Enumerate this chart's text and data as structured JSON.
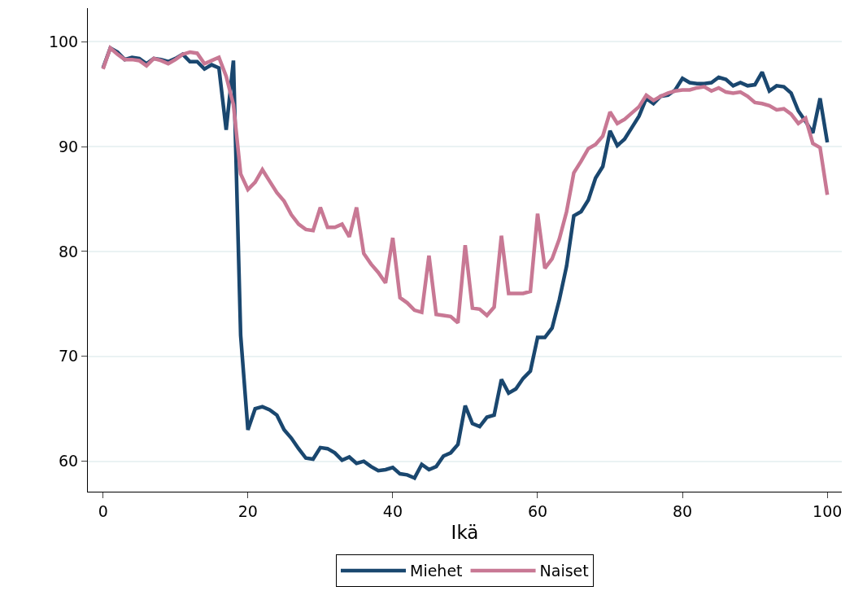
{
  "chart_data": {
    "type": "line",
    "xlabel": "Ikä",
    "x": [
      0,
      1,
      2,
      3,
      4,
      5,
      6,
      7,
      8,
      9,
      10,
      11,
      12,
      13,
      14,
      15,
      16,
      17,
      18,
      19,
      20,
      21,
      22,
      23,
      24,
      25,
      26,
      27,
      28,
      29,
      30,
      31,
      32,
      33,
      34,
      35,
      36,
      37,
      38,
      39,
      40,
      41,
      42,
      43,
      44,
      45,
      46,
      47,
      48,
      49,
      50,
      51,
      52,
      53,
      54,
      55,
      56,
      57,
      58,
      59,
      60,
      61,
      62,
      63,
      64,
      65,
      66,
      67,
      68,
      69,
      70,
      71,
      72,
      73,
      74,
      75,
      76,
      77,
      78,
      79,
      80,
      81,
      82,
      83,
      84,
      85,
      86,
      87,
      88,
      89,
      90,
      91,
      92,
      93,
      94,
      95,
      96,
      97,
      98,
      99,
      100
    ],
    "series": [
      {
        "name": "Miehet",
        "color": "#1a476f",
        "values": [
          97.5,
          99.4,
          99.0,
          98.3,
          98.5,
          98.4,
          97.9,
          98.4,
          98.3,
          98.1,
          98.4,
          98.8,
          98.1,
          98.1,
          97.4,
          97.8,
          97.5,
          91.6,
          98.2,
          72.0,
          63.0,
          65.0,
          65.2,
          64.9,
          64.4,
          63.0,
          62.2,
          61.2,
          60.3,
          60.2,
          61.3,
          61.2,
          60.8,
          60.1,
          60.4,
          59.8,
          60.0,
          59.5,
          59.1,
          59.2,
          59.4,
          58.8,
          58.7,
          58.4,
          59.7,
          59.2,
          59.5,
          60.5,
          60.8,
          61.6,
          65.3,
          63.6,
          63.3,
          64.2,
          64.4,
          67.8,
          66.5,
          66.9,
          67.9,
          68.6,
          71.8,
          71.8,
          72.7,
          75.4,
          78.6,
          83.4,
          83.8,
          84.9,
          87.0,
          88.1,
          91.5,
          90.1,
          90.7,
          91.8,
          92.9,
          94.6,
          94.1,
          94.8,
          94.9,
          95.4,
          96.5,
          96.1,
          96.0,
          96.0,
          96.1,
          96.6,
          96.4,
          95.8,
          96.1,
          95.8,
          95.9,
          97.1,
          95.3,
          95.8,
          95.7,
          95.1,
          93.4,
          92.4,
          91.3,
          94.6,
          90.4
        ]
      },
      {
        "name": "Naiset",
        "color": "#c87894",
        "values": [
          97.4,
          99.4,
          98.8,
          98.3,
          98.3,
          98.2,
          97.7,
          98.4,
          98.2,
          97.9,
          98.3,
          98.8,
          99.0,
          98.9,
          97.9,
          98.2,
          98.5,
          96.7,
          94.0,
          87.4,
          85.9,
          86.6,
          87.8,
          86.7,
          85.6,
          84.8,
          83.5,
          82.6,
          82.1,
          82.0,
          84.2,
          82.3,
          82.3,
          82.6,
          81.4,
          84.2,
          79.8,
          78.8,
          78.0,
          77.0,
          81.3,
          75.6,
          75.1,
          74.4,
          74.2,
          79.6,
          74.0,
          73.9,
          73.8,
          73.2,
          80.6,
          74.6,
          74.5,
          73.9,
          74.7,
          81.5,
          76.0,
          76.0,
          76.0,
          76.2,
          83.6,
          78.4,
          79.3,
          81.2,
          83.8,
          87.5,
          88.6,
          89.8,
          90.2,
          91.0,
          93.3,
          92.2,
          92.6,
          93.2,
          93.8,
          94.9,
          94.4,
          94.8,
          95.1,
          95.3,
          95.4,
          95.4,
          95.6,
          95.7,
          95.3,
          95.6,
          95.2,
          95.1,
          95.2,
          94.8,
          94.2,
          94.1,
          93.9,
          93.5,
          93.6,
          93.1,
          92.2,
          92.7,
          90.3,
          89.9,
          85.4
        ]
      }
    ],
    "xlim": [
      -2.1,
      102
    ],
    "ylim": [
      57.1,
      103.2
    ],
    "xticks": [
      0,
      20,
      40,
      60,
      80,
      100
    ],
    "yticks": [
      60,
      70,
      80,
      90,
      100
    ],
    "grid": "y",
    "legend": "bottom",
    "marker": "none",
    "line_style": "solid"
  }
}
